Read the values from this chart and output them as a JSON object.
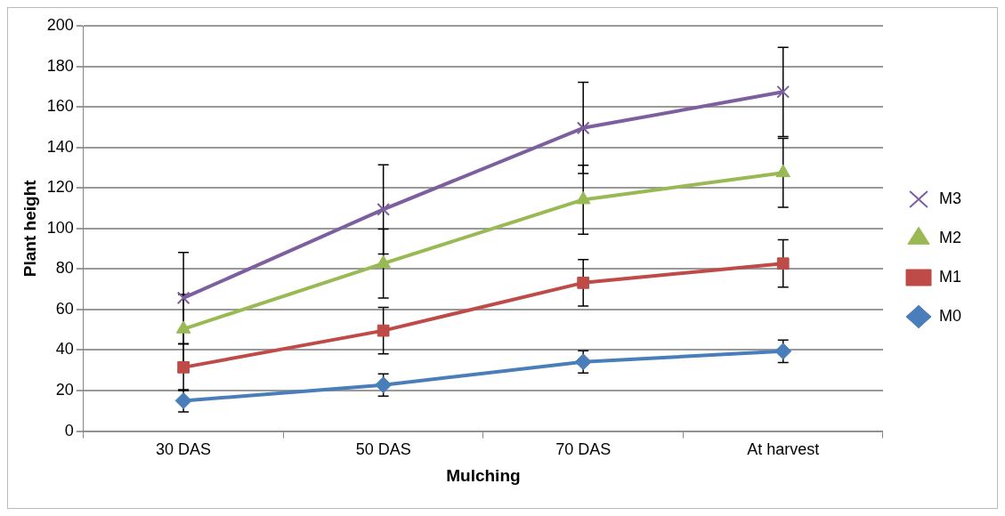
{
  "chart_data": {
    "type": "line",
    "xlabel": "Mulching",
    "ylabel": "Plant height",
    "categories": [
      "30 DAS",
      "50 DAS",
      "70 DAS",
      "At harvest"
    ],
    "ylim": [
      0,
      200
    ],
    "yticks": [
      0,
      20,
      40,
      60,
      80,
      100,
      120,
      140,
      160,
      180,
      200
    ],
    "grid": "y",
    "legend": "right",
    "series": [
      {
        "name": "M0",
        "color": "#4a7ebb",
        "marker": "diamond",
        "values": [
          15,
          22.8,
          34.2,
          39.4
        ],
        "errors": [
          5.5,
          5.5,
          5.5,
          5.5
        ]
      },
      {
        "name": "M1",
        "color": "#be4b48",
        "marker": "square",
        "values": [
          31.5,
          49.6,
          73.2,
          82.7
        ],
        "errors": [
          11.5,
          11.5,
          11.5,
          11.7
        ]
      },
      {
        "name": "M2",
        "color": "#98b954",
        "marker": "triangle",
        "values": [
          50.4,
          82.7,
          114.2,
          127.5
        ],
        "errors": [
          17,
          17,
          17,
          17
        ]
      },
      {
        "name": "M3",
        "color": "#7d5fa0",
        "marker": "cross",
        "values": [
          65.7,
          109.4,
          149.6,
          167.4
        ],
        "errors": [
          22.5,
          22,
          22.5,
          22
        ]
      }
    ]
  }
}
